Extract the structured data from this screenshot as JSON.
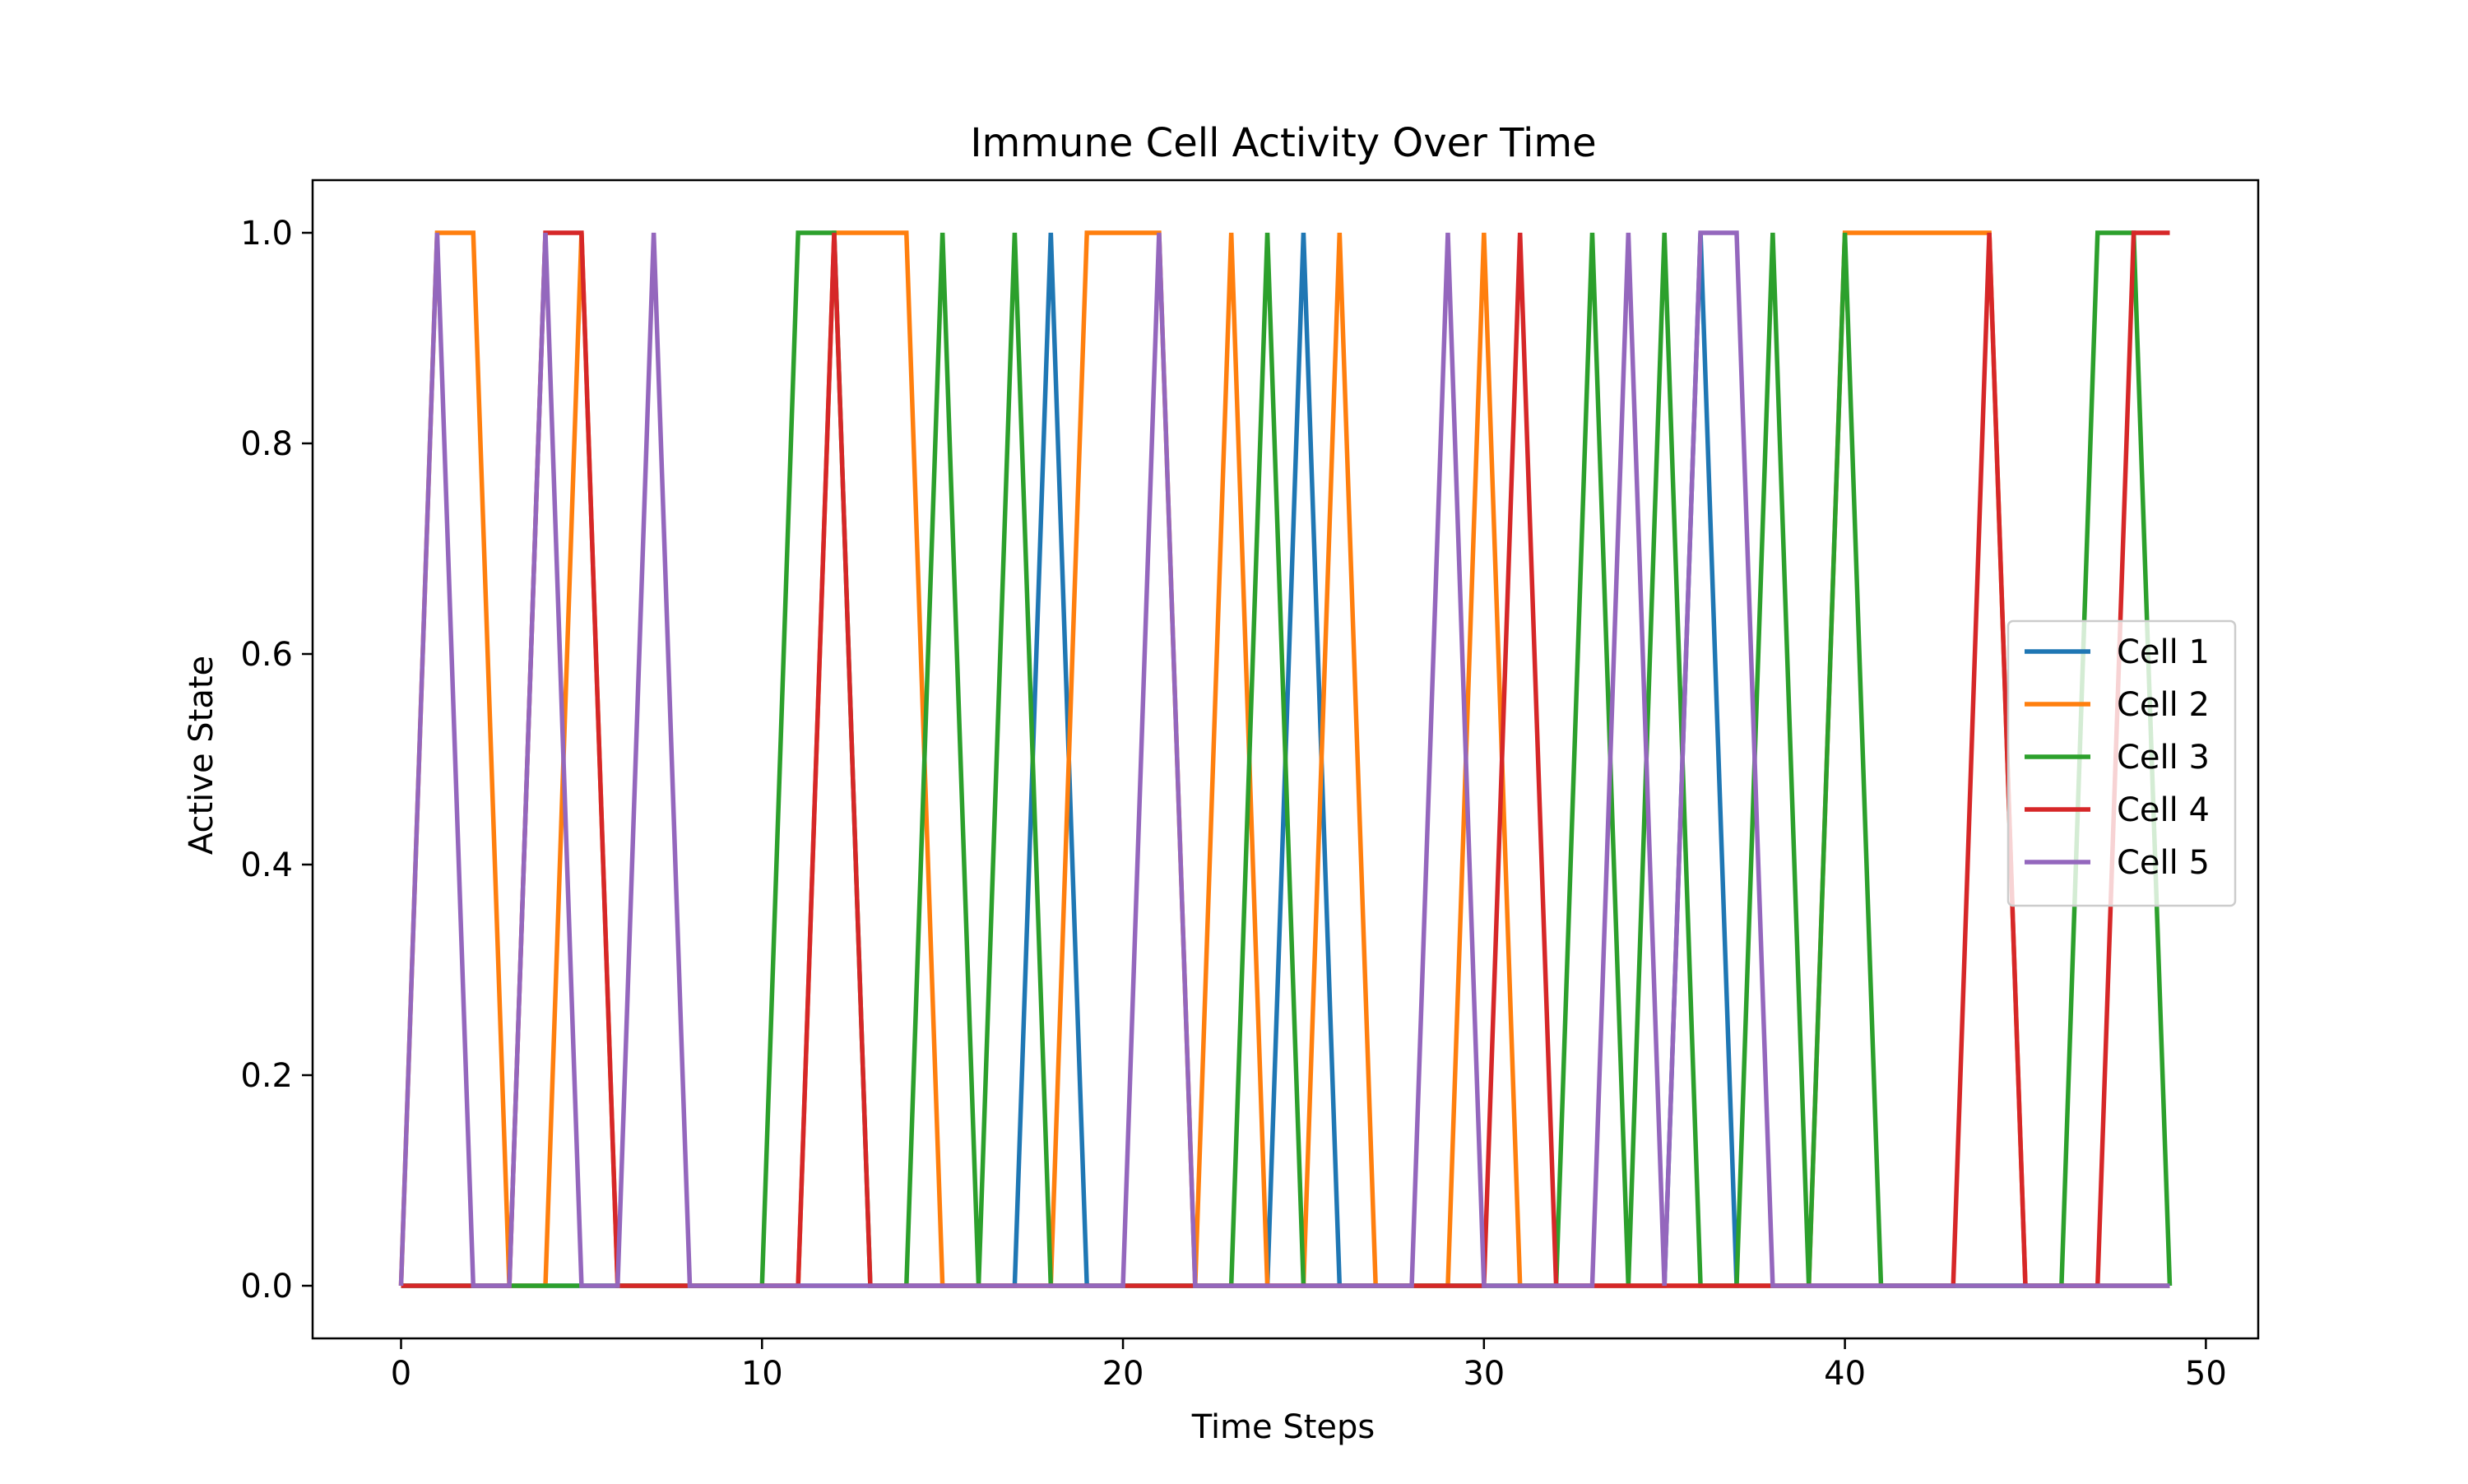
{
  "chart_data": {
    "type": "line",
    "title": "Immune Cell Activity Over Time",
    "xlabel": "Time Steps",
    "ylabel": "Active State",
    "xlim": [
      -2.45,
      51.45
    ],
    "ylim": [
      -0.05,
      1.05
    ],
    "xticks": [
      0,
      10,
      20,
      30,
      40,
      50
    ],
    "yticks": [
      0.0,
      0.2,
      0.4,
      0.6,
      0.8,
      1.0
    ],
    "xtick_labels": [
      "0",
      "10",
      "20",
      "30",
      "40",
      "50"
    ],
    "ytick_labels": [
      "0.0",
      "0.2",
      "0.4",
      "0.6",
      "0.8",
      "1.0"
    ],
    "grid": false,
    "legend_position": "center-right",
    "x": [
      0,
      1,
      2,
      3,
      4,
      5,
      6,
      7,
      8,
      9,
      10,
      11,
      12,
      13,
      14,
      15,
      16,
      17,
      18,
      19,
      20,
      21,
      22,
      23,
      24,
      25,
      26,
      27,
      28,
      29,
      30,
      31,
      32,
      33,
      34,
      35,
      36,
      37,
      38,
      39,
      40,
      41,
      42,
      43,
      44,
      45,
      46,
      47,
      48,
      49
    ],
    "series": [
      {
        "name": "Cell 1",
        "color": "#1f77b4",
        "values": [
          0,
          0,
          0,
          0,
          0,
          0,
          0,
          0,
          0,
          0,
          0,
          0,
          0,
          0,
          0,
          0,
          0,
          0,
          1,
          0,
          0,
          0,
          0,
          0,
          0,
          1,
          0,
          0,
          0,
          0,
          0,
          0,
          0,
          0,
          0,
          0,
          1,
          0,
          0,
          0,
          0,
          0,
          0,
          0,
          0,
          0,
          0,
          0,
          0,
          0
        ]
      },
      {
        "name": "Cell 2",
        "color": "#ff7f0e",
        "values": [
          0,
          1,
          1,
          0,
          0,
          1,
          0,
          0,
          0,
          0,
          0,
          0,
          1,
          1,
          1,
          0,
          0,
          0,
          0,
          1,
          1,
          1,
          0,
          1,
          0,
          0,
          1,
          0,
          0,
          0,
          1,
          0,
          0,
          0,
          0,
          0,
          0,
          0,
          0,
          0,
          1,
          1,
          1,
          1,
          1,
          0,
          0,
          0,
          0,
          0
        ]
      },
      {
        "name": "Cell 3",
        "color": "#2ca02c",
        "values": [
          0,
          0,
          0,
          0,
          0,
          0,
          0,
          0,
          0,
          0,
          0,
          1,
          1,
          0,
          0,
          1,
          0,
          1,
          0,
          0,
          0,
          0,
          0,
          0,
          1,
          0,
          0,
          0,
          0,
          0,
          0,
          0,
          0,
          1,
          0,
          1,
          0,
          0,
          1,
          0,
          1,
          0,
          0,
          0,
          0,
          0,
          0,
          1,
          1,
          0
        ]
      },
      {
        "name": "Cell 4",
        "color": "#d62728",
        "values": [
          0,
          0,
          0,
          0,
          1,
          1,
          0,
          0,
          0,
          0,
          0,
          0,
          1,
          0,
          0,
          0,
          0,
          0,
          0,
          0,
          0,
          0,
          0,
          0,
          0,
          0,
          0,
          0,
          0,
          0,
          0,
          1,
          0,
          0,
          0,
          0,
          0,
          0,
          0,
          0,
          0,
          0,
          0,
          0,
          1,
          0,
          0,
          0,
          1,
          1
        ]
      },
      {
        "name": "Cell 5",
        "color": "#9467bd",
        "values": [
          0,
          1,
          0,
          0,
          1,
          0,
          0,
          1,
          0,
          0,
          0,
          0,
          0,
          0,
          0,
          0,
          0,
          0,
          0,
          0,
          0,
          1,
          0,
          0,
          0,
          0,
          0,
          0,
          0,
          1,
          0,
          0,
          0,
          0,
          1,
          0,
          1,
          1,
          0,
          0,
          0,
          0,
          0,
          0,
          0,
          0,
          0,
          0,
          0,
          0
        ]
      }
    ]
  }
}
